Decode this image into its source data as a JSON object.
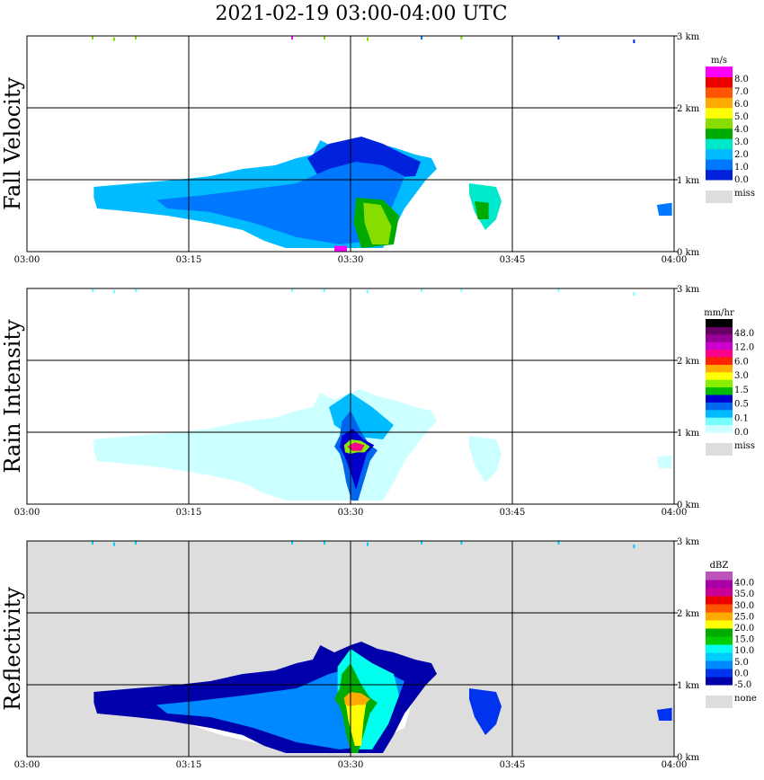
{
  "title": "2021-02-19   03:00-04:00 UTC",
  "x_ticks": [
    "03:00",
    "03:15",
    "03:30",
    "03:45",
    "04:00"
  ],
  "y_ticks": [
    "0 km",
    "1 km",
    "2 km",
    "3 km"
  ],
  "panels": [
    {
      "label": "Fall Velocity",
      "background": "#ffffff",
      "unit": "m/s",
      "colorbar": {
        "colors": [
          "#0022dd",
          "#0077ff",
          "#00bbff",
          "#00e8cc",
          "#00aa00",
          "#88dd00",
          "#ffff00",
          "#ffaa00",
          "#ff5500",
          "#ee0000",
          "#ff00ff"
        ],
        "labels": [
          "0.0",
          "1.0",
          "2.0",
          "3.0",
          "4.0",
          "5.0",
          "6.0",
          "7.0",
          "8.0"
        ],
        "miss_label": "miss",
        "miss_color": "#dddddd"
      }
    },
    {
      "label": "Rain Intensity",
      "background": "#ffffff",
      "unit": "mm/hr",
      "colorbar": {
        "colors": [
          "#ccffff",
          "#77ffff",
          "#00bbff",
          "#0066ee",
          "#0000cc",
          "#00bb00",
          "#88ee00",
          "#ffff00",
          "#ffaa00",
          "#ff2200",
          "#ff0088",
          "#cc00cc",
          "#990099",
          "#660066",
          "#000000"
        ],
        "labels": [
          "0.0",
          "0.1",
          "0.5",
          "1.5",
          "3.0",
          "6.0",
          "12.0",
          "48.0"
        ],
        "miss_label": "miss",
        "miss_color": "#dddddd"
      }
    },
    {
      "label": "Reflectivity",
      "background": "#dddddd",
      "unit": "dBZ",
      "colorbar": {
        "colors": [
          "#0000aa",
          "#0033ee",
          "#0088ff",
          "#00ccff",
          "#00ffee",
          "#00cc00",
          "#00aa00",
          "#ffff00",
          "#ffaa00",
          "#ff5500",
          "#ee0000",
          "#cc0099",
          "#aa00aa",
          "#bb55bb"
        ],
        "labels": [
          "-5.0",
          "0.0",
          "5.0",
          "10.0",
          "15.0",
          "20.0",
          "25.0",
          "30.0",
          "35.0",
          "40.0"
        ],
        "miss_label": "none",
        "miss_color": "#dddddd"
      }
    }
  ],
  "chart_data": {
    "type": "heatmap",
    "title": "2021-02-19   03:00-04:00 UTC",
    "x": [
      "03:00",
      "03:15",
      "03:30",
      "03:45",
      "04:00"
    ],
    "y": [
      "0 km",
      "1 km",
      "2 km",
      "3 km"
    ],
    "xlim": [
      "03:00",
      "04:00"
    ],
    "ylim_km": [
      0,
      3.0
    ],
    "grid": true,
    "fields": [
      {
        "name": "Fall Velocity",
        "unit": "m/s",
        "scale": [
          "0.0",
          "1.0",
          "2.0",
          "3.0",
          "4.0",
          "5.0",
          "6.0",
          "7.0",
          "8.0"
        ],
        "echo_top_km": 1.6
      },
      {
        "name": "Rain Intensity",
        "unit": "mm/hr",
        "scale": [
          "0.0",
          "0.1",
          "0.5",
          "1.5",
          "3.0",
          "6.0",
          "12.0",
          "48.0"
        ],
        "max_near_km": 0.8
      },
      {
        "name": "Reflectivity",
        "unit": "dBZ",
        "scale": [
          "-5.0",
          "0.0",
          "5.0",
          "10.0",
          "15.0",
          "20.0",
          "25.0",
          "30.0",
          "35.0",
          "40.0"
        ],
        "max_near_km": 0.8
      }
    ]
  }
}
